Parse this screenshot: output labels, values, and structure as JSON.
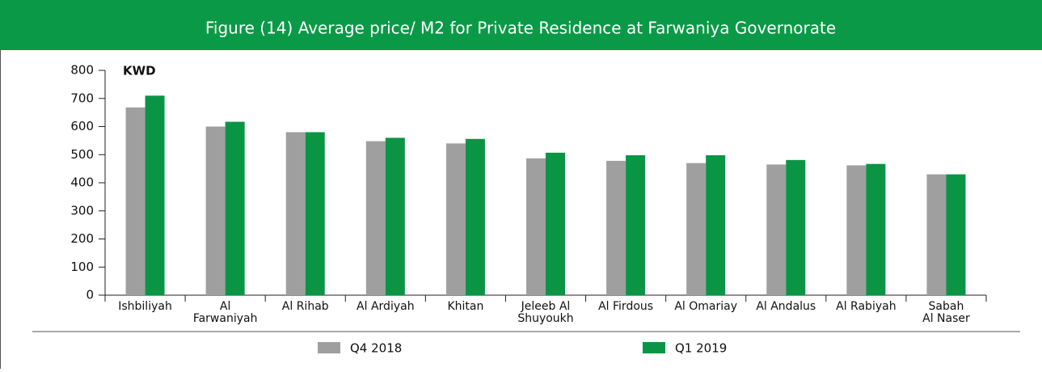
{
  "chart_data": {
    "type": "bar",
    "title": "Figure (14) Average price/ M2 for Private Residence at Farwaniya Governorate",
    "y_unit": "KWD",
    "categories": [
      "Ishbiliyah",
      "Al\nFarwaniyah",
      "Al Rihab",
      "Al Ardiyah",
      "Khitan",
      "Jeleeb Al\nShuyoukh",
      "Al Firdous",
      "Al Omariay",
      "Al Andalus",
      "Al Rabiyah",
      "Sabah\nAl Naser"
    ],
    "series": [
      {
        "name": "Q4 2018",
        "color": "#a09f9f",
        "values": [
          668,
          600,
          580,
          548,
          540,
          487,
          478,
          470,
          465,
          462,
          430
        ]
      },
      {
        "name": "Q1 2019",
        "color": "#0a9544",
        "values": [
          710,
          617,
          580,
          560,
          556,
          507,
          498,
          498,
          481,
          467,
          430
        ]
      }
    ],
    "ylim": [
      0,
      800
    ],
    "yticks": [
      0,
      100,
      200,
      300,
      400,
      500,
      600,
      700,
      800
    ]
  }
}
